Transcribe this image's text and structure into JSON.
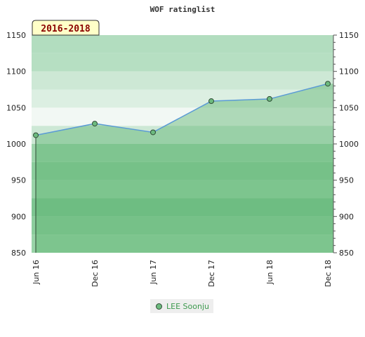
{
  "chart_data": {
    "type": "area",
    "title": "WOF ratinglist",
    "badge": "2016-2018",
    "categories": [
      "Jun 16",
      "Dec 16",
      "Jun 17",
      "Dec 17",
      "Jun 18",
      "Dec 18"
    ],
    "series": [
      {
        "name": "LEE Soonju",
        "values": [
          1012,
          1028,
          1016,
          1059,
          1062,
          1083
        ]
      }
    ],
    "ylim": [
      850,
      1150
    ],
    "yticks": [
      850,
      900,
      950,
      1000,
      1050,
      1100,
      1150
    ],
    "grid": true,
    "legend": "bottom-center",
    "colors": {
      "line": "#5b9bd5",
      "area": "#5cb36e",
      "marker": "#6dbb7f",
      "badge_bg": "#ffffc8"
    }
  },
  "legend_items": [
    {
      "label": "LEE Soonju"
    }
  ]
}
